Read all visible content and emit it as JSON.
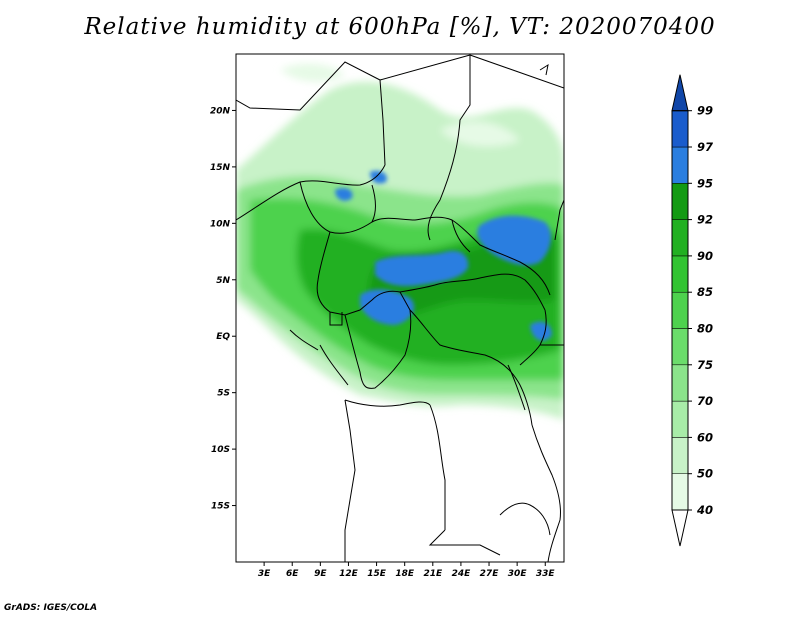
{
  "title": "Relative humidity at 600hPa [%], VT: 2020070400",
  "credit": "GrADS: IGES/COLA",
  "map": {
    "lat_labels": [
      "20N",
      "15N",
      "10N",
      "5N",
      "EQ",
      "5S",
      "10S",
      "15S"
    ],
    "lat_values": [
      20,
      15,
      10,
      5,
      0,
      -5,
      -10,
      -15
    ],
    "lon_labels": [
      "3E",
      "6E",
      "9E",
      "12E",
      "15E",
      "18E",
      "21E",
      "24E",
      "27E",
      "30E",
      "33E"
    ],
    "lon_values": [
      3,
      6,
      9,
      12,
      15,
      18,
      21,
      24,
      27,
      30,
      33
    ],
    "lon_range": [
      0,
      35
    ],
    "lat_range": [
      -20,
      25
    ]
  },
  "colorbar": {
    "levels": [
      "40",
      "50",
      "60",
      "70",
      "75",
      "80",
      "85",
      "90",
      "92",
      "95",
      "97",
      "99"
    ],
    "colors": [
      "#ffffff",
      "#e6fae6",
      "#c8f2c8",
      "#a8eca8",
      "#8be48b",
      "#6bdc6b",
      "#4ed24e",
      "#32c432",
      "#22b022",
      "#139a13",
      "#2a7ee0",
      "#1a5ccc",
      "#1046a8"
    ]
  }
}
